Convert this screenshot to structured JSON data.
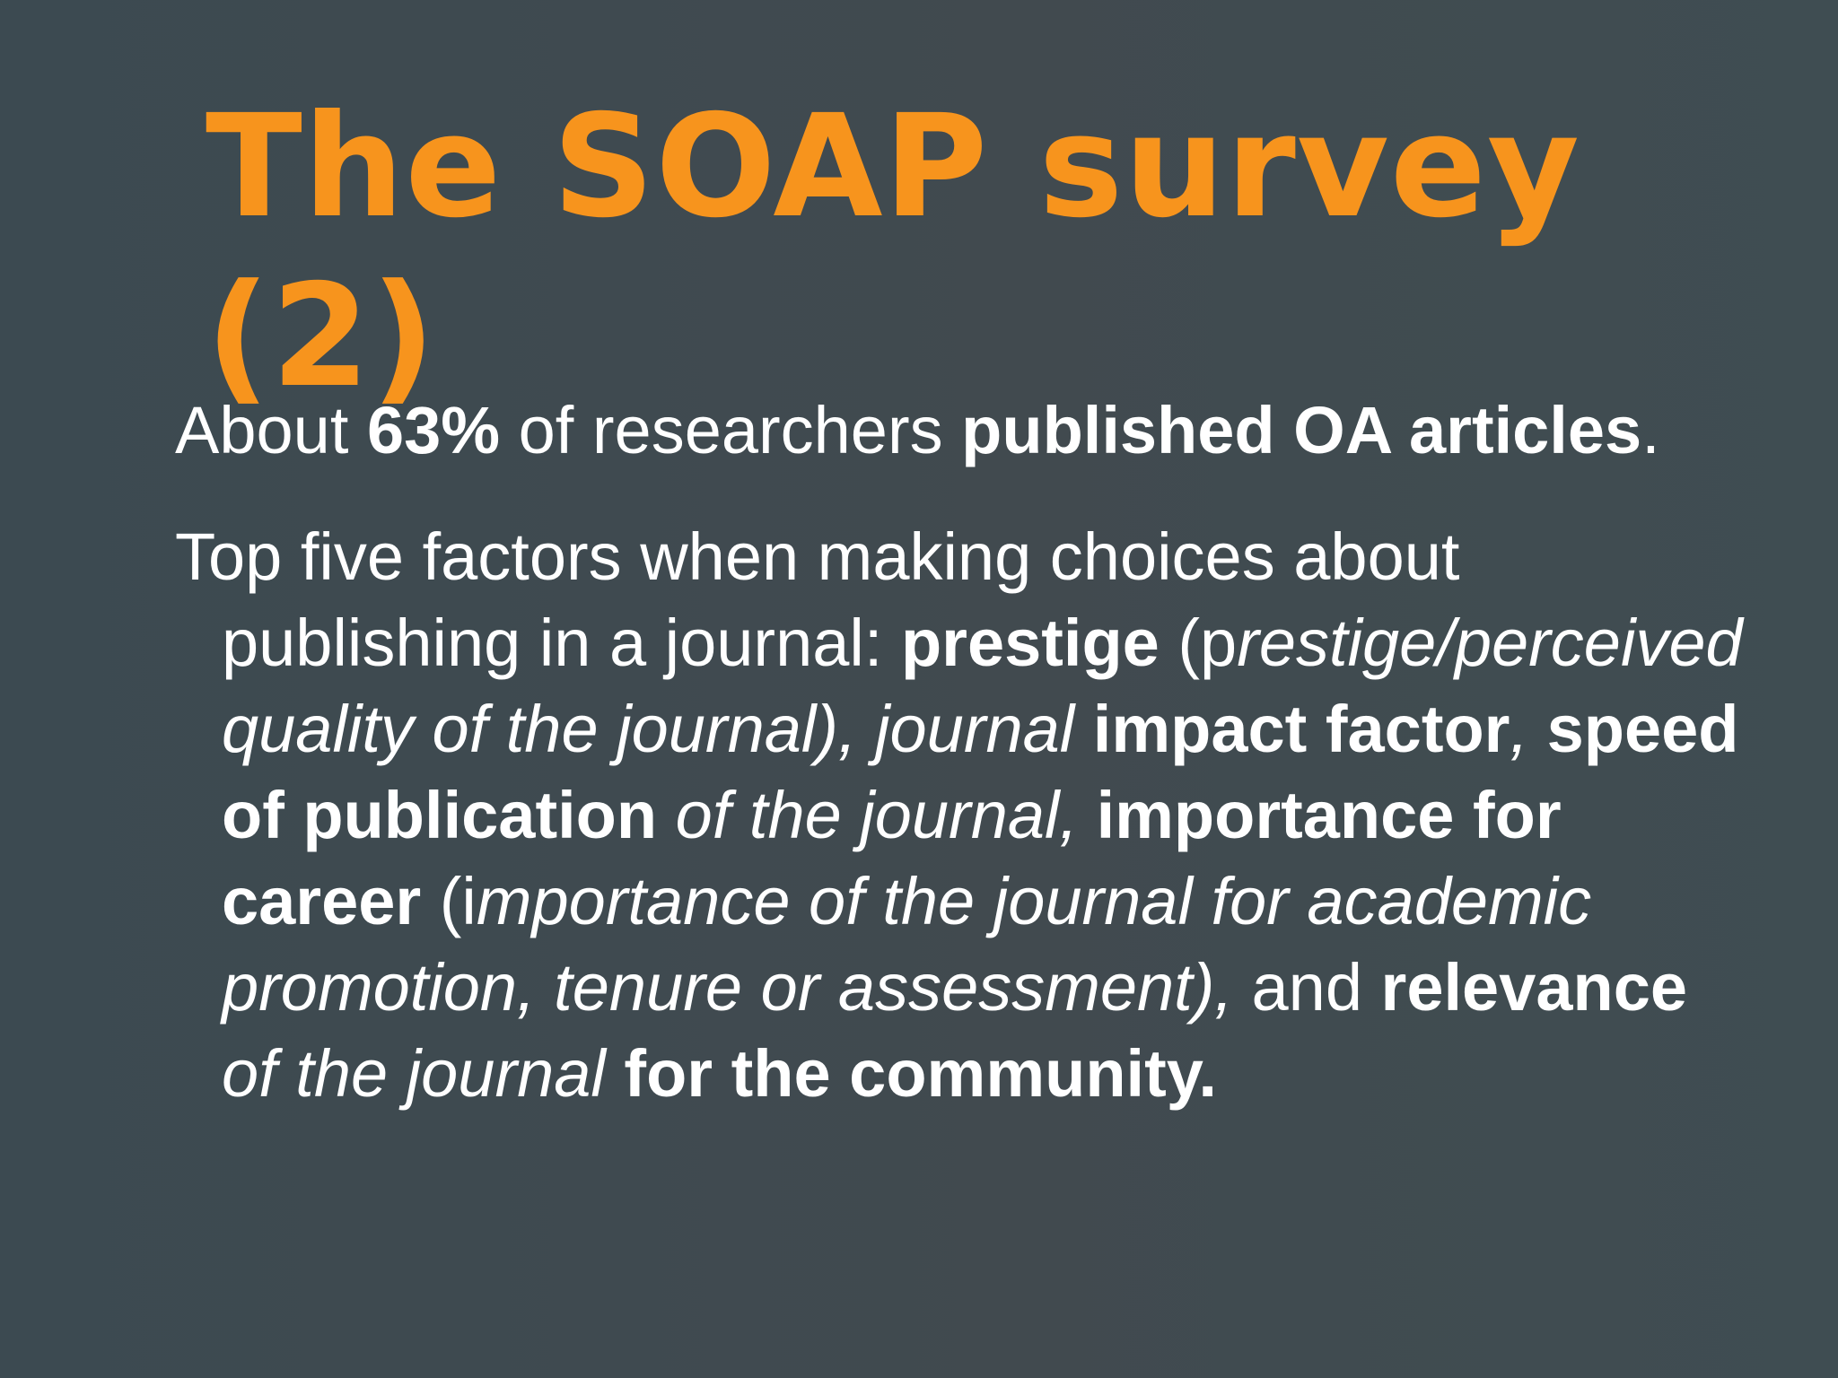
{
  "slide": {
    "title": "The SOAP survey (2)",
    "bullet1": {
      "t1": "About ",
      "t2": "63%",
      "t3": " of researchers ",
      "t4": "published OA articles",
      "t5": "."
    },
    "bullet2": {
      "t1": "Top five factors when making choices about publishing in a journal: ",
      "t2": "prestige",
      "t3": " (p",
      "t4": "restige/perceived quality of the journal), journal",
      "t5": " ",
      "t6": "impact factor",
      "t7": ", ",
      "t8": "speed of publication",
      "t9": " of the journal, ",
      "t10": "importance for career",
      "t11": " (i",
      "t12": "mportance of the journal for academic promotion, tenure or assessment),",
      "t13": " and ",
      "t14": "relevance",
      "t15": " of the journal ",
      "t16": "for the community."
    }
  },
  "colors": {
    "background": "#3f4a50",
    "title": "#f7941d",
    "text": "#ffffff"
  }
}
